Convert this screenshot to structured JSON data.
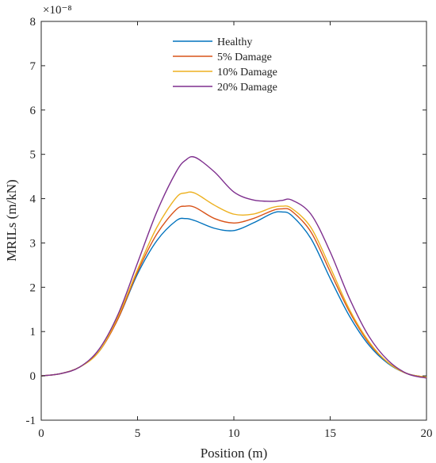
{
  "chart_data": {
    "type": "line",
    "xlabel": "Position (m)",
    "ylabel": "MRILs (m/kN)",
    "exponent_label": "×10⁻⁸",
    "xlim": [
      0,
      20
    ],
    "ylim": [
      -1,
      8
    ],
    "xticks": [
      0,
      5,
      10,
      15,
      20
    ],
    "yticks": [
      -1,
      0,
      1,
      2,
      3,
      4,
      5,
      6,
      7,
      8
    ],
    "grid": false,
    "legend_position": "top-center",
    "series": [
      {
        "name": "Healthy",
        "color": "#0072BD",
        "x": [
          0,
          1,
          2,
          3,
          4,
          5,
          6,
          7,
          7.5,
          8,
          9,
          10,
          11,
          12,
          12.5,
          13,
          14,
          15,
          16,
          17,
          18,
          19,
          20
        ],
        "y": [
          0,
          0.05,
          0.2,
          0.55,
          1.3,
          2.3,
          3.05,
          3.5,
          3.55,
          3.5,
          3.33,
          3.28,
          3.45,
          3.67,
          3.7,
          3.62,
          3.1,
          2.2,
          1.35,
          0.7,
          0.28,
          0.05,
          -0.03
        ]
      },
      {
        "name": "5% Damage",
        "color": "#D95319",
        "x": [
          0,
          1,
          2,
          3,
          4,
          5,
          6,
          7,
          7.5,
          8,
          9,
          10,
          11,
          12,
          12.5,
          13,
          14,
          15,
          16,
          17,
          18,
          19,
          20
        ],
        "y": [
          0,
          0.05,
          0.2,
          0.55,
          1.3,
          2.35,
          3.2,
          3.75,
          3.83,
          3.8,
          3.55,
          3.45,
          3.55,
          3.73,
          3.77,
          3.72,
          3.25,
          2.35,
          1.45,
          0.75,
          0.3,
          0.05,
          -0.03
        ]
      },
      {
        "name": "10% Damage",
        "color": "#EDB120",
        "x": [
          0,
          1,
          2,
          3,
          4,
          5,
          6,
          7,
          7.5,
          8,
          9,
          10,
          11,
          12,
          12.5,
          13,
          14,
          15,
          16,
          17,
          18,
          19,
          20
        ],
        "y": [
          0,
          0.05,
          0.2,
          0.55,
          1.35,
          2.4,
          3.35,
          4.02,
          4.13,
          4.12,
          3.85,
          3.65,
          3.65,
          3.8,
          3.83,
          3.78,
          3.35,
          2.45,
          1.5,
          0.78,
          0.3,
          0.05,
          -0.03
        ]
      },
      {
        "name": "20% Damage",
        "color": "#7E2F8E",
        "x": [
          0,
          1,
          2,
          3,
          4,
          5,
          6,
          7,
          7.5,
          8,
          9,
          10,
          11,
          12,
          12.5,
          13,
          14,
          15,
          16,
          17,
          18,
          19,
          20
        ],
        "y": [
          0,
          0.05,
          0.2,
          0.6,
          1.4,
          2.55,
          3.7,
          4.6,
          4.87,
          4.93,
          4.6,
          4.15,
          3.97,
          3.94,
          3.96,
          3.97,
          3.65,
          2.8,
          1.75,
          0.9,
          0.35,
          0.05,
          -0.05
        ]
      }
    ]
  }
}
